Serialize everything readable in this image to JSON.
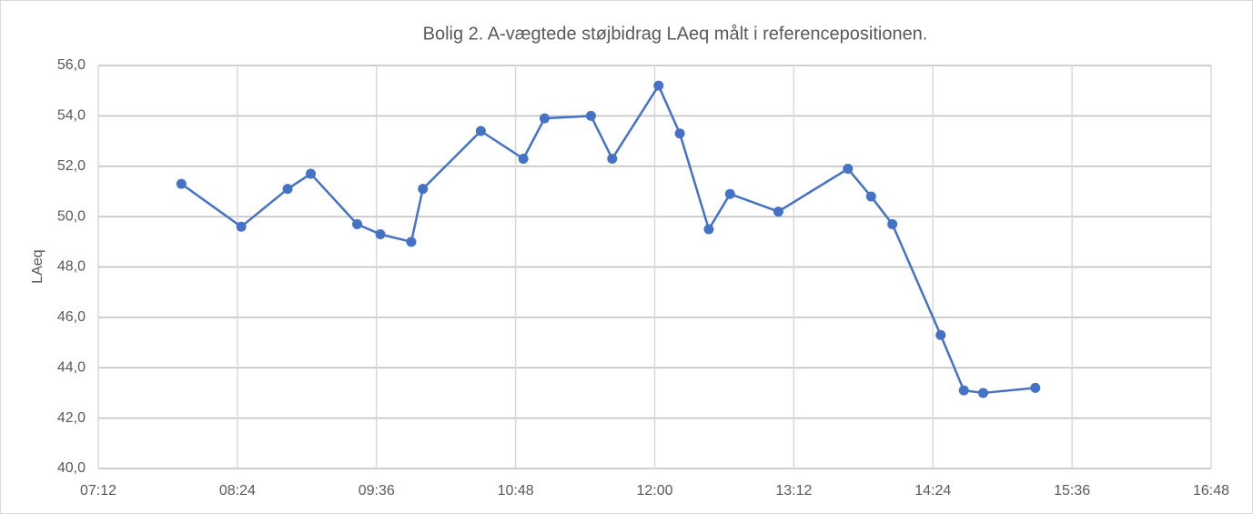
{
  "chart_data": {
    "type": "line",
    "title": "Bolig 2. A-vægtede støjbidrag LAeq målt i referencepositionen.",
    "y_label": "LAeq",
    "x": [
      475,
      506,
      530,
      542,
      566,
      578,
      594,
      600,
      630,
      652,
      663,
      687,
      698,
      722,
      733,
      748,
      759,
      784,
      820,
      832,
      843,
      868,
      880,
      890,
      917
    ],
    "series": [
      {
        "name": "LAeq",
        "color": "#4472c4",
        "values": [
          51.3,
          49.6,
          51.1,
          51.7,
          49.7,
          49.3,
          49.0,
          51.1,
          53.4,
          52.3,
          53.9,
          54.0,
          52.3,
          55.2,
          53.3,
          49.5,
          50.9,
          50.2,
          51.9,
          50.8,
          49.7,
          45.3,
          43.1,
          43.0,
          43.2
        ]
      }
    ],
    "xlim": [
      432,
      1008
    ],
    "xticks": [
      {
        "value": 432,
        "label": "07:12"
      },
      {
        "value": 504,
        "label": "08:24"
      },
      {
        "value": 576,
        "label": "09:36"
      },
      {
        "value": 648,
        "label": "10:48"
      },
      {
        "value": 720,
        "label": "12:00"
      },
      {
        "value": 792,
        "label": "13:12"
      },
      {
        "value": 864,
        "label": "14:24"
      },
      {
        "value": 936,
        "label": "15:36"
      },
      {
        "value": 1008,
        "label": "16:48"
      }
    ],
    "ylim": [
      40,
      56
    ],
    "yticks": [
      {
        "value": 40,
        "label": "40,0"
      },
      {
        "value": 42,
        "label": "42,0"
      },
      {
        "value": 44,
        "label": "44,0"
      },
      {
        "value": 46,
        "label": "46,0"
      },
      {
        "value": 48,
        "label": "48,0"
      },
      {
        "value": 50,
        "label": "50,0"
      },
      {
        "value": 52,
        "label": "52,0"
      },
      {
        "value": 54,
        "label": "54,0"
      },
      {
        "value": 56,
        "label": "56,0"
      }
    ],
    "grid": true
  }
}
